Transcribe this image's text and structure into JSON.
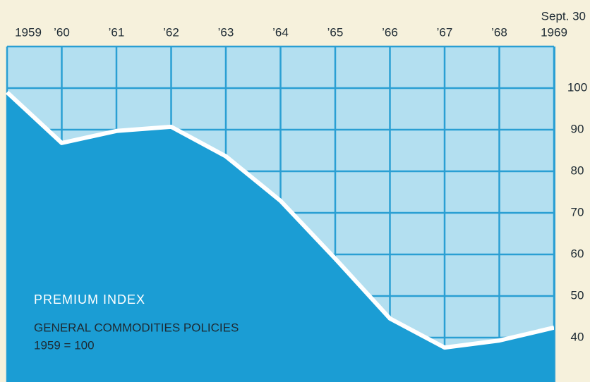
{
  "chart_data": {
    "type": "area",
    "annotation_top": "Sept. 30",
    "label_title": "PREMIUM INDEX",
    "label_subtitle": "GENERAL COMMODITIES POLICIES",
    "label_base": "1959 = 100",
    "categories": [
      "1959",
      "’60",
      "’61",
      "’62",
      "’63",
      "’64",
      "’65",
      "’66",
      "’67",
      "’68",
      "1969"
    ],
    "values": [
      99,
      86.8,
      89.7,
      90.7,
      83.6,
      72.9,
      59,
      44.6,
      37.6,
      39.3,
      42.4
    ],
    "color": "#1b9dd4",
    "line_color": "#ffffff",
    "background_color": "#b3dff0",
    "grid_color": "#2a9fd3",
    "ylim": [
      30,
      110
    ],
    "yticks": [
      40,
      50,
      60,
      70,
      80,
      90,
      100
    ],
    "grid": true
  }
}
